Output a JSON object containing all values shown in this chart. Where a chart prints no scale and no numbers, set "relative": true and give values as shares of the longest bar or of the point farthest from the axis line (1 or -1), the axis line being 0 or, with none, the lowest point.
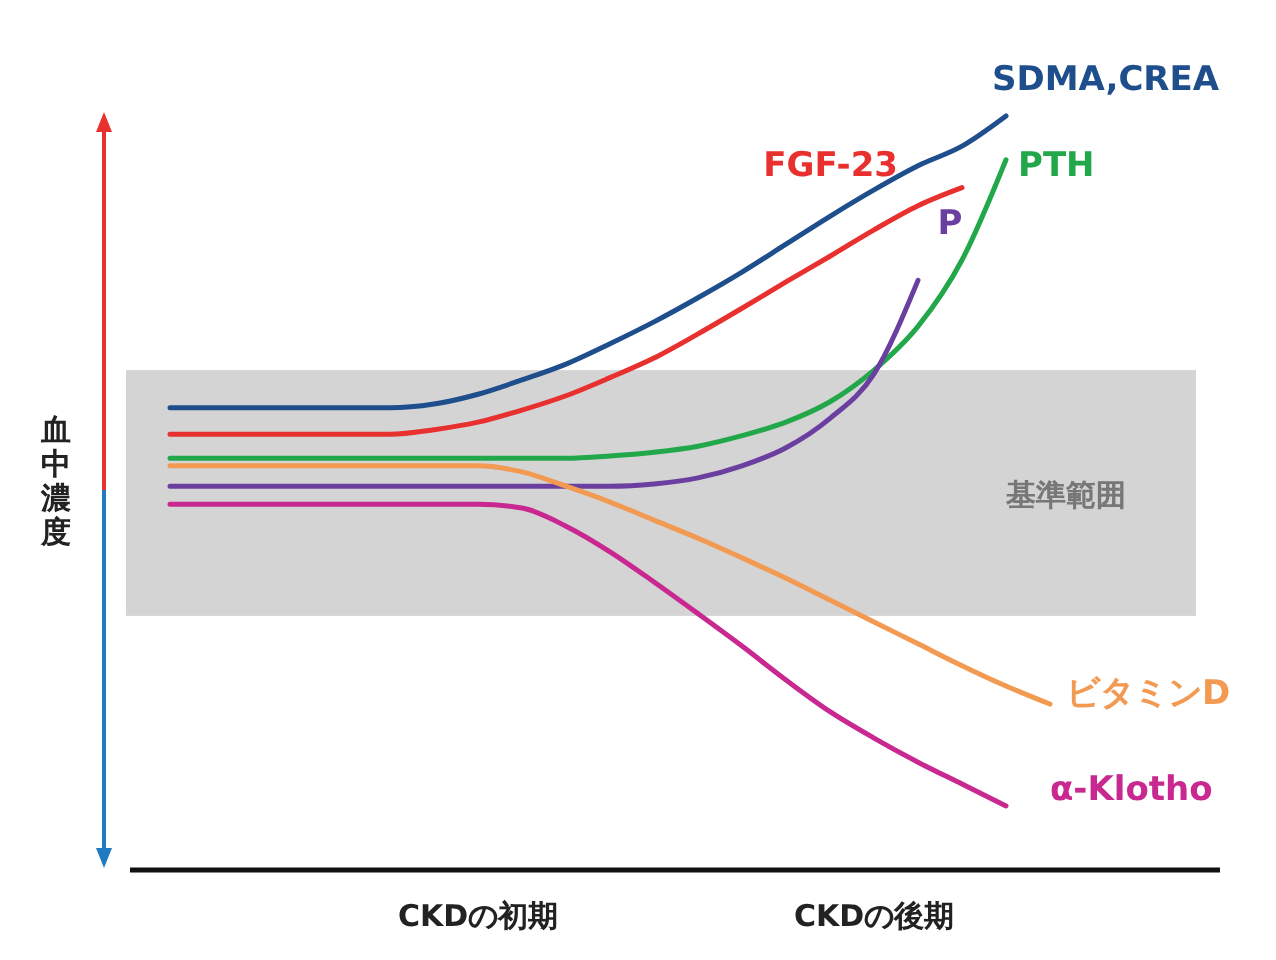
{
  "chart_data": {
    "type": "line",
    "relative": true,
    "ylabel": "血中濃度",
    "legend": false,
    "categories": [
      null,
      null,
      null,
      null,
      null,
      null,
      null,
      "CKDの初期",
      null,
      null,
      null,
      null,
      null,
      null,
      null,
      null,
      "CKDの後期",
      null,
      null,
      null,
      null
    ],
    "bands": [
      {
        "axis": "y",
        "from": 0.337,
        "to": 0.663,
        "label": "基準範囲",
        "color": "#d4d4d5"
      }
    ],
    "series": [
      {
        "name": "SDMA,CREA",
        "color": "#1f4e8c",
        "values": [
          0.613,
          0.613,
          0.613,
          0.613,
          0.613,
          0.613,
          0.618,
          0.631,
          0.65,
          0.671,
          0.698,
          0.727,
          0.759,
          0.793,
          0.83,
          0.867,
          0.902,
          0.934,
          0.96,
          1.0,
          null
        ]
      },
      {
        "name": "FGF-23",
        "color": "#e8302f",
        "values": [
          0.578,
          0.578,
          0.578,
          0.578,
          0.578,
          0.578,
          0.584,
          0.594,
          0.61,
          0.629,
          0.653,
          0.679,
          0.711,
          0.745,
          0.78,
          0.814,
          0.849,
          0.881,
          0.905,
          null,
          null
        ]
      },
      {
        "name": "PTH",
        "color": "#22a84a",
        "values": [
          0.546,
          0.546,
          0.546,
          0.546,
          0.546,
          0.546,
          0.546,
          0.546,
          0.546,
          0.546,
          0.549,
          0.554,
          0.562,
          0.576,
          0.594,
          0.621,
          0.663,
          0.721,
          0.809,
          0.942,
          null
        ]
      },
      {
        "name": "P",
        "color": "#6b3fa0",
        "values": [
          0.509,
          0.509,
          0.509,
          0.509,
          0.509,
          0.509,
          0.509,
          0.509,
          0.509,
          0.509,
          0.509,
          0.512,
          0.52,
          0.536,
          0.56,
          0.599,
          0.658,
          0.782,
          null,
          null,
          null
        ]
      },
      {
        "name": "ビタミンD",
        "color": "#f39a52",
        "values": [
          0.536,
          0.536,
          0.536,
          0.536,
          0.536,
          0.536,
          0.536,
          0.536,
          0.528,
          0.509,
          0.488,
          0.464,
          0.44,
          0.414,
          0.387,
          0.358,
          0.329,
          0.3,
          0.271,
          0.244,
          0.22
        ]
      },
      {
        "name": "α-Klotho",
        "color": "#c8288f",
        "values": [
          0.485,
          0.485,
          0.485,
          0.485,
          0.485,
          0.485,
          0.485,
          0.485,
          0.48,
          0.456,
          0.422,
          0.382,
          0.34,
          0.297,
          0.252,
          0.21,
          0.175,
          0.143,
          0.114,
          0.085,
          null
        ]
      }
    ]
  }
}
